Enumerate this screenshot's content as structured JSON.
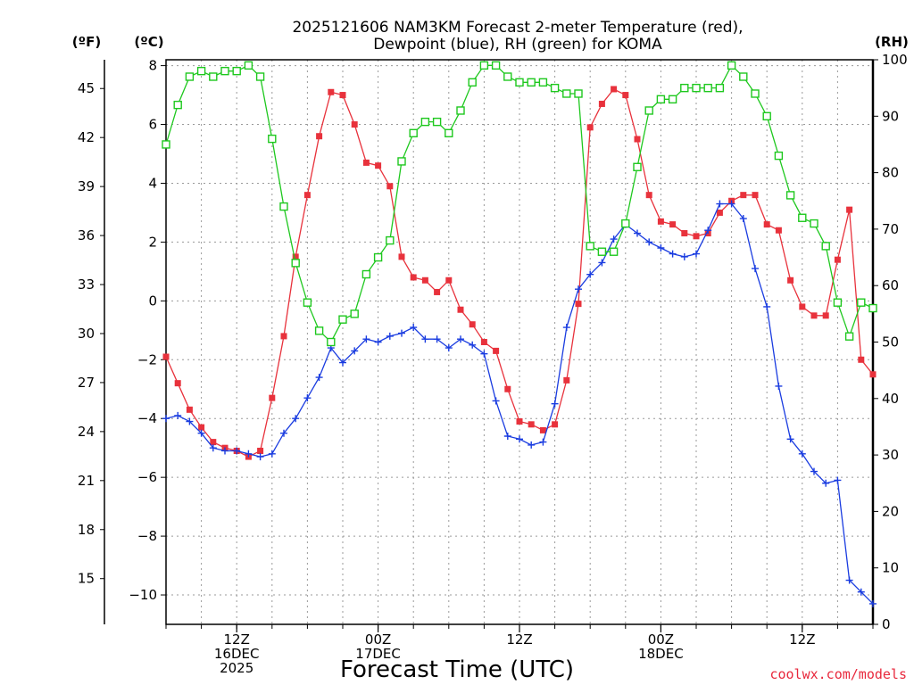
{
  "chart_data": {
    "type": "line",
    "title_line1": "2025121606 NAM3KM Forecast 2-meter Temperature (red),",
    "title_line2": "Dewpoint (blue), RH (green) for KOMA",
    "xlabel": "Forecast Time (UTC)",
    "credit": "coolwx.com/models",
    "left_unit_f": "(ºF)",
    "left_unit_c": "(ºC)",
    "right_unit": "(RH)",
    "forecast_hours": [
      0,
      1,
      2,
      3,
      4,
      5,
      6,
      7,
      8,
      9,
      10,
      11,
      12,
      13,
      14,
      15,
      16,
      17,
      18,
      19,
      20,
      21,
      22,
      23,
      24,
      25,
      26,
      27,
      28,
      29,
      30,
      31,
      32,
      33,
      34,
      35,
      36,
      37,
      38,
      39,
      40,
      41,
      42,
      43,
      44,
      45,
      46,
      47,
      48,
      49,
      50,
      51,
      52,
      53,
      54,
      55,
      56,
      57,
      58,
      59,
      60
    ],
    "xlim": [
      0,
      60
    ],
    "ylim_c": [
      -11,
      8.2
    ],
    "ylim_rh": [
      0,
      100
    ],
    "celsius_ticks": [
      -10,
      -8,
      -6,
      -4,
      -2,
      0,
      2,
      4,
      6,
      8
    ],
    "fahrenheit_ticks": [
      15,
      18,
      21,
      24,
      27,
      30,
      33,
      36,
      39,
      42,
      45
    ],
    "rh_ticks": [
      0,
      10,
      20,
      30,
      40,
      50,
      60,
      70,
      80,
      90,
      100
    ],
    "x_ticks": [
      {
        "hour": 6,
        "labels": [
          "12Z",
          "16DEC",
          "2025"
        ]
      },
      {
        "hour": 18,
        "labels": [
          "00Z",
          "17DEC"
        ]
      },
      {
        "hour": 30,
        "labels": [
          "12Z"
        ]
      },
      {
        "hour": 42,
        "labels": [
          "00Z",
          "18DEC"
        ]
      },
      {
        "hour": 54,
        "labels": [
          "12Z"
        ]
      }
    ],
    "series": [
      {
        "name": "Temperature",
        "units": "C",
        "color": "#e8323c",
        "marker": "filled-square",
        "values": [
          -1.9,
          -2.8,
          -3.7,
          -4.3,
          -4.8,
          -5.0,
          -5.1,
          -5.3,
          -5.1,
          -3.3,
          -1.2,
          1.5,
          3.6,
          5.6,
          7.1,
          7.0,
          6.0,
          4.7,
          4.6,
          3.9,
          1.5,
          0.8,
          0.7,
          0.3,
          0.7,
          -0.3,
          -0.8,
          -1.4,
          -1.7,
          -3.0,
          -4.1,
          -4.2,
          -4.4,
          -4.2,
          -2.7,
          -0.1,
          5.9,
          6.7,
          7.2,
          7.0,
          5.5,
          3.6,
          2.7,
          2.6,
          2.3,
          2.2,
          2.3,
          3.0,
          3.4,
          3.6,
          3.6,
          2.6,
          2.4,
          0.7,
          -0.2,
          -0.5,
          -0.5,
          1.4,
          3.1,
          -2.0,
          -2.5
        ]
      },
      {
        "name": "Dewpoint",
        "units": "C",
        "color": "#1a3ce0",
        "marker": "plus",
        "values": [
          -4.0,
          -3.9,
          -4.1,
          -4.5,
          -5.0,
          -5.1,
          -5.1,
          -5.2,
          -5.3,
          -5.2,
          -4.5,
          -4.0,
          -3.3,
          -2.6,
          -1.6,
          -2.1,
          -1.7,
          -1.3,
          -1.4,
          -1.2,
          -1.1,
          -0.9,
          -1.3,
          -1.3,
          -1.6,
          -1.3,
          -1.5,
          -1.8,
          -3.4,
          -4.6,
          -4.7,
          -4.9,
          -4.8,
          -3.5,
          -0.9,
          0.4,
          0.9,
          1.3,
          2.1,
          2.6,
          2.3,
          2.0,
          1.8,
          1.6,
          1.5,
          1.6,
          2.4,
          3.3,
          3.3,
          2.8,
          1.1,
          -0.2,
          -2.9,
          -4.7,
          -5.2,
          -5.8,
          -6.2,
          -6.1,
          -9.5,
          -9.9,
          -10.3
        ]
      },
      {
        "name": "RH",
        "units": "%",
        "color": "#1ec81e",
        "marker": "open-square",
        "values": [
          85,
          92,
          97,
          98,
          97,
          98,
          98,
          99,
          97,
          86,
          74,
          64,
          57,
          52,
          50,
          54,
          55,
          62,
          65,
          68,
          82,
          87,
          89,
          89,
          87,
          91,
          96,
          99,
          99,
          97,
          96,
          96,
          96,
          95,
          94,
          94,
          67,
          66,
          66,
          71,
          81,
          91,
          93,
          93,
          95,
          95,
          95,
          95,
          99,
          97,
          94,
          90,
          83,
          76,
          72,
          71,
          67,
          57,
          51,
          57,
          56
        ]
      }
    ]
  }
}
